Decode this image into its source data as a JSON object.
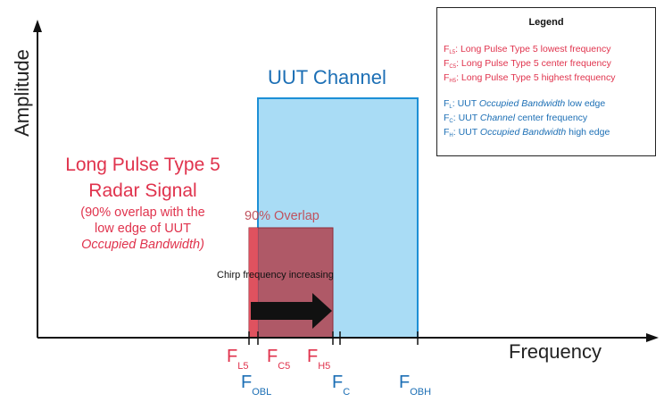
{
  "axes": {
    "y_label": "Amplitude",
    "x_label": "Frequency"
  },
  "uut_channel": {
    "label": "UUT Channel",
    "fill_color": "#a9dcf5",
    "edge_color": "#1c8fd6"
  },
  "radar": {
    "title_line1": "Long Pulse Type 5",
    "title_line2": "Radar Signal",
    "sub_line1": "(90% overlap with the",
    "sub_line2": "low edge of UUT",
    "sub_line3": "Occupied Bandwidth)",
    "fill_color": "#b0424e",
    "color": "#e0334d"
  },
  "overlap_label": "90% Overlap",
  "chirp_label": "Chirp frequency increasing",
  "freq_markers": {
    "fl5": {
      "main": "F",
      "sub": "L5"
    },
    "fc5": {
      "main": "F",
      "sub": "C5"
    },
    "fh5": {
      "main": "F",
      "sub": "H5"
    },
    "fobl": {
      "main": "F",
      "sub": "OBL"
    },
    "fc": {
      "main": "F",
      "sub": "C"
    },
    "fobh": {
      "main": "F",
      "sub": "OBH"
    }
  },
  "legend": {
    "title": "Legend",
    "items": [
      {
        "sym": "F",
        "sub": "L5",
        "text": ": Long Pulse Type 5 lowest frequency"
      },
      {
        "sym": "F",
        "sub": "C5",
        "text": ": Long Pulse Type 5 center frequency"
      },
      {
        "sym": "F",
        "sub": "H5",
        "text": ": Long Pulse Type 5 highest frequency"
      },
      {
        "sym": "F",
        "sub": "L",
        "pre": ": UUT ",
        "em": "Occupied Bandwidth",
        "post": " low edge"
      },
      {
        "sym": "F",
        "sub": "C",
        "pre": ": UUT ",
        "em": "Channel",
        "post": " center frequency"
      },
      {
        "sym": "F",
        "sub": "H",
        "pre": ": UUT ",
        "em": "Occupied Bandwidth",
        "post": " high edge"
      }
    ]
  }
}
